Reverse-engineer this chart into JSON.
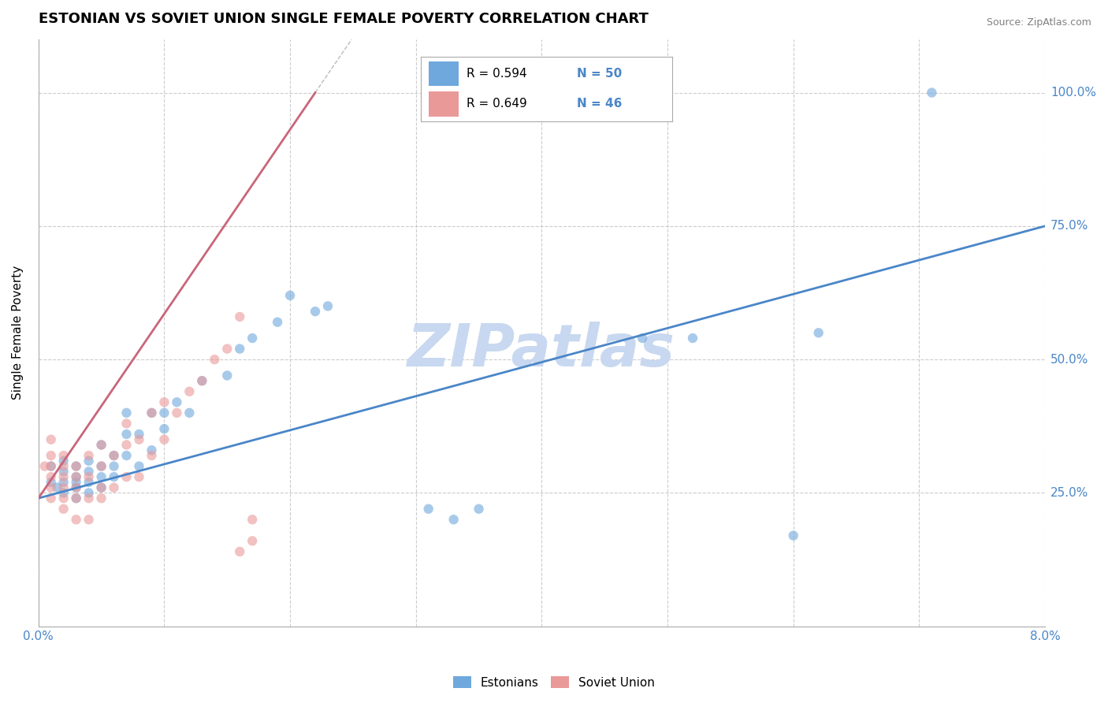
{
  "title": "ESTONIAN VS SOVIET UNION SINGLE FEMALE POVERTY CORRELATION CHART",
  "source": "Source: ZipAtlas.com",
  "ylabel": "Single Female Poverty",
  "xlim": [
    0.0,
    0.08
  ],
  "ylim": [
    0.0,
    1.1
  ],
  "xticks": [
    0.0,
    0.01,
    0.02,
    0.03,
    0.04,
    0.05,
    0.06,
    0.07,
    0.08
  ],
  "ytick_labels": [
    "25.0%",
    "50.0%",
    "75.0%",
    "100.0%"
  ],
  "ytick_positions": [
    0.25,
    0.5,
    0.75,
    1.0
  ],
  "blue_color": "#6fa8dc",
  "pink_color": "#ea9999",
  "blue_line_color": "#4a86c8",
  "pink_line_color": "#c9667a",
  "legend_r1": "R = 0.594",
  "legend_n1": "N = 50",
  "legend_r2": "R = 0.649",
  "legend_n2": "N = 46",
  "watermark": "ZIPatlas",
  "watermark_color": "#c8d8f0",
  "grid_color": "#cccccc",
  "blue_scatter_x": [
    0.001,
    0.001,
    0.0015,
    0.002,
    0.002,
    0.002,
    0.002,
    0.003,
    0.003,
    0.003,
    0.003,
    0.003,
    0.004,
    0.004,
    0.004,
    0.004,
    0.005,
    0.005,
    0.005,
    0.005,
    0.006,
    0.006,
    0.006,
    0.007,
    0.007,
    0.007,
    0.008,
    0.008,
    0.009,
    0.009,
    0.01,
    0.01,
    0.011,
    0.012,
    0.013,
    0.015,
    0.016,
    0.017,
    0.019,
    0.02,
    0.022,
    0.023,
    0.031,
    0.033,
    0.035,
    0.048,
    0.052,
    0.06,
    0.062,
    0.071
  ],
  "blue_scatter_y": [
    0.27,
    0.3,
    0.26,
    0.25,
    0.27,
    0.29,
    0.31,
    0.24,
    0.26,
    0.27,
    0.28,
    0.3,
    0.25,
    0.27,
    0.29,
    0.31,
    0.26,
    0.28,
    0.3,
    0.34,
    0.28,
    0.3,
    0.32,
    0.32,
    0.36,
    0.4,
    0.3,
    0.36,
    0.33,
    0.4,
    0.37,
    0.4,
    0.42,
    0.4,
    0.46,
    0.47,
    0.52,
    0.54,
    0.57,
    0.62,
    0.59,
    0.6,
    0.22,
    0.2,
    0.22,
    0.54,
    0.54,
    0.17,
    0.55,
    1.0
  ],
  "pink_scatter_x": [
    0.0005,
    0.001,
    0.001,
    0.001,
    0.001,
    0.001,
    0.001,
    0.002,
    0.002,
    0.002,
    0.002,
    0.002,
    0.002,
    0.003,
    0.003,
    0.003,
    0.003,
    0.003,
    0.004,
    0.004,
    0.004,
    0.004,
    0.005,
    0.005,
    0.005,
    0.005,
    0.006,
    0.006,
    0.007,
    0.007,
    0.007,
    0.008,
    0.008,
    0.009,
    0.009,
    0.01,
    0.01,
    0.011,
    0.012,
    0.013,
    0.014,
    0.015,
    0.016,
    0.016,
    0.017,
    0.017
  ],
  "pink_scatter_y": [
    0.3,
    0.24,
    0.26,
    0.28,
    0.3,
    0.32,
    0.35,
    0.22,
    0.24,
    0.26,
    0.28,
    0.3,
    0.32,
    0.2,
    0.24,
    0.26,
    0.28,
    0.3,
    0.2,
    0.24,
    0.28,
    0.32,
    0.24,
    0.26,
    0.3,
    0.34,
    0.26,
    0.32,
    0.28,
    0.34,
    0.38,
    0.28,
    0.35,
    0.32,
    0.4,
    0.35,
    0.42,
    0.4,
    0.44,
    0.46,
    0.5,
    0.52,
    0.58,
    0.14,
    0.16,
    0.2
  ],
  "blue_trend_x": [
    0.0,
    0.08
  ],
  "blue_trend_y": [
    0.24,
    0.75
  ],
  "pink_trend_x": [
    0.0,
    0.022
  ],
  "pink_trend_y": [
    0.24,
    1.0
  ],
  "title_fontsize": 13,
  "axis_label_fontsize": 11,
  "tick_fontsize": 11
}
